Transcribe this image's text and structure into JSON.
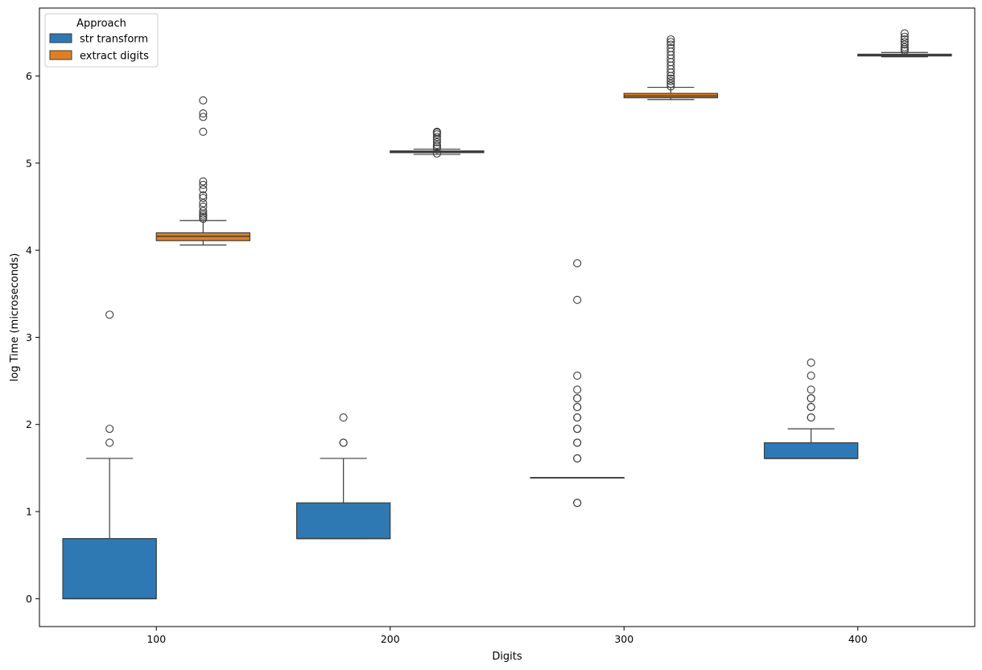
{
  "chart_data": {
    "type": "box",
    "xlabel": "Digits",
    "ylabel": "log Time (microseconds)",
    "categories": [
      "100",
      "200",
      "300",
      "400"
    ],
    "xlim": [
      50,
      450
    ],
    "ylim": [
      -0.32,
      6.78
    ],
    "yticks": [
      "0",
      "1",
      "2",
      "3",
      "4",
      "5",
      "6"
    ],
    "grid": false,
    "legend": {
      "title": "Approach",
      "placement": "top-left",
      "entries": [
        "str transform",
        "extract digits"
      ]
    },
    "series": [
      {
        "name": "str transform",
        "color": "#2e78b3",
        "boxes": [
          {
            "category": "100",
            "whisker_low": 0.0,
            "q1": 0.0,
            "median": 0.0,
            "q3": 0.69,
            "whisker_high": 1.61,
            "outliers": [
              1.79,
              1.95,
              3.26
            ]
          },
          {
            "category": "200",
            "whisker_low": 0.69,
            "q1": 0.69,
            "median": 0.69,
            "q3": 1.1,
            "whisker_high": 1.61,
            "outliers": [
              1.79,
              1.79,
              2.08
            ]
          },
          {
            "category": "300",
            "whisker_low": 1.39,
            "q1": 1.39,
            "median": 1.39,
            "q3": 1.39,
            "whisker_high": 1.39,
            "outliers": [
              1.1,
              1.1,
              1.61,
              1.61,
              1.79,
              1.79,
              1.95,
              1.95,
              2.08,
              2.08,
              2.2,
              2.2,
              2.3,
              2.3,
              2.4,
              2.56,
              3.43,
              3.85
            ]
          },
          {
            "category": "400",
            "whisker_low": 1.61,
            "q1": 1.61,
            "median": 1.61,
            "q3": 1.79,
            "whisker_high": 1.95,
            "outliers": [
              2.08,
              2.08,
              2.2,
              2.2,
              2.3,
              2.3,
              2.4,
              2.56,
              2.71
            ]
          }
        ]
      },
      {
        "name": "extract digits",
        "color": "#e27e20",
        "boxes": [
          {
            "category": "100",
            "whisker_low": 4.06,
            "q1": 4.11,
            "median": 4.16,
            "q3": 4.2,
            "whisker_high": 4.34,
            "outliers": [
              4.36,
              4.38,
              4.4,
              4.42,
              4.45,
              4.5,
              4.54,
              4.6,
              4.63,
              4.7,
              4.75,
              4.79,
              5.36,
              5.53,
              5.57,
              5.72
            ]
          },
          {
            "category": "200",
            "whisker_low": 5.1,
            "q1": 5.12,
            "median": 5.13,
            "q3": 5.14,
            "whisker_high": 5.16,
            "outliers": [
              5.11,
              5.17,
              5.19,
              5.21,
              5.24,
              5.27,
              5.3,
              5.33,
              5.35,
              5.36
            ]
          },
          {
            "category": "300",
            "whisker_low": 5.73,
            "q1": 5.75,
            "median": 5.77,
            "q3": 5.8,
            "whisker_high": 5.87,
            "outliers": [
              5.88,
              5.91,
              5.94,
              5.97,
              6.0,
              6.04,
              6.08,
              6.12,
              6.16,
              6.2,
              6.24,
              6.28,
              6.32,
              6.36,
              6.39,
              6.42
            ]
          },
          {
            "category": "400",
            "whisker_low": 6.22,
            "q1": 6.23,
            "median": 6.24,
            "q3": 6.25,
            "whisker_high": 6.27,
            "outliers": [
              6.29,
              6.31,
              6.33,
              6.36,
              6.39,
              6.42,
              6.45,
              6.49
            ]
          }
        ]
      }
    ]
  }
}
